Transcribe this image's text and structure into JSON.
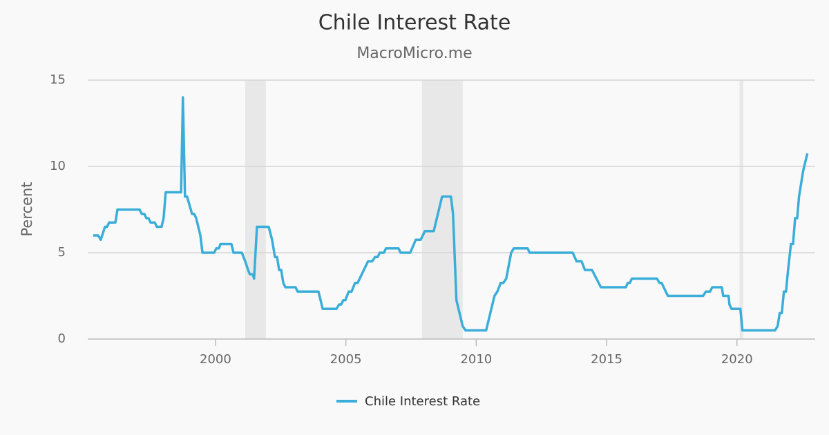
{
  "chart_data": {
    "type": "line",
    "title": "Chile Interest Rate",
    "subtitle": "MacroMicro.me",
    "y_label": "Percent",
    "xlim": [
      1995.1,
      2023.0
    ],
    "xticks": [
      2000,
      2005,
      2010,
      2015,
      2020
    ],
    "ylim": [
      0,
      15
    ],
    "yticks": [
      0,
      5,
      10,
      15
    ],
    "grid": true,
    "legend": "bottom",
    "shaded_ranges": [
      [
        2001.14,
        2001.93
      ],
      [
        2007.92,
        2009.48
      ],
      [
        2020.1,
        2020.24
      ]
    ],
    "shade_color": "#e8e8e8",
    "x": [
      1995.31,
      1995.5,
      1995.6,
      1995.76,
      1995.84,
      1995.92,
      1996.16,
      1996.24,
      1997.09,
      1997.17,
      1997.27,
      1997.35,
      1997.43,
      1997.51,
      1997.67,
      1997.75,
      1997.93,
      1998.01,
      1998.09,
      1998.68,
      1998.75,
      1998.83,
      1998.91,
      1999.1,
      1999.18,
      1999.26,
      1999.42,
      1999.5,
      1999.95,
      2000.03,
      2000.13,
      2000.19,
      2000.61,
      2000.69,
      2001.01,
      2001.14,
      2001.25,
      2001.32,
      2001.43,
      2001.48,
      2001.59,
      2002.04,
      2002.17,
      2002.28,
      2002.36,
      2002.44,
      2002.52,
      2002.6,
      2002.68,
      2003.07,
      2003.15,
      2003.95,
      2004.11,
      2004.64,
      2004.74,
      2004.82,
      2004.9,
      2004.98,
      2005.11,
      2005.22,
      2005.35,
      2005.45,
      2005.85,
      2006.01,
      2006.12,
      2006.22,
      2006.3,
      2006.46,
      2006.54,
      2007.02,
      2007.1,
      2007.47,
      2007.68,
      2007.87,
      2008.03,
      2008.37,
      2008.69,
      2009.03,
      2009.11,
      2009.24,
      2009.48,
      2009.59,
      2010.38,
      2010.7,
      2010.81,
      2010.94,
      2011.04,
      2011.15,
      2011.34,
      2011.44,
      2011.97,
      2012.05,
      2013.7,
      2013.85,
      2014.04,
      2014.17,
      2014.44,
      2014.78,
      2015.74,
      2015.81,
      2015.89,
      2015.97,
      2016.93,
      2017.03,
      2017.11,
      2017.35,
      2018.7,
      2018.81,
      2018.97,
      2019.05,
      2019.42,
      2019.47,
      2019.68,
      2019.71,
      2019.79,
      2020.13,
      2020.21,
      2021.46,
      2021.56,
      2021.64,
      2021.72,
      2021.8,
      2021.88,
      2021.96,
      2022.07,
      2022.15,
      2022.23,
      2022.31,
      2022.38,
      2022.54,
      2022.7
    ],
    "series": [
      {
        "name": "Chile Interest Rate",
        "color": "#3aaed8",
        "values": [
          6,
          6,
          5.75,
          6.5,
          6.5,
          6.75,
          6.75,
          7.5,
          7.5,
          7.25,
          7.25,
          7,
          7,
          6.75,
          6.75,
          6.5,
          6.5,
          7,
          8.5,
          8.5,
          14,
          8.25,
          8.25,
          7.25,
          7.25,
          7,
          6,
          5,
          5,
          5.25,
          5.25,
          5.5,
          5.5,
          5,
          5,
          4.5,
          4,
          3.75,
          3.75,
          3.5,
          6.5,
          6.5,
          5.75,
          4.75,
          4.75,
          4,
          4,
          3.25,
          3,
          3,
          2.75,
          2.75,
          1.75,
          1.75,
          2,
          2,
          2.25,
          2.25,
          2.75,
          2.75,
          3.25,
          3.25,
          4.5,
          4.5,
          4.75,
          4.75,
          5,
          5,
          5.25,
          5.25,
          5,
          5,
          5.75,
          5.75,
          6.25,
          6.25,
          8.25,
          8.25,
          7.25,
          2.25,
          0.75,
          0.5,
          0.5,
          2.5,
          2.75,
          3.25,
          3.25,
          3.5,
          5,
          5.25,
          5.25,
          5,
          5,
          4.5,
          4.5,
          4,
          4,
          3,
          3,
          3.25,
          3.25,
          3.5,
          3.5,
          3.25,
          3.25,
          2.5,
          2.5,
          2.75,
          2.75,
          3,
          3,
          2.5,
          2.5,
          2,
          1.75,
          1.75,
          0.5,
          0.5,
          0.75,
          1.5,
          1.5,
          2.75,
          2.75,
          4,
          5.5,
          5.5,
          7,
          7,
          8.25,
          9.75,
          10.75
        ]
      }
    ]
  }
}
